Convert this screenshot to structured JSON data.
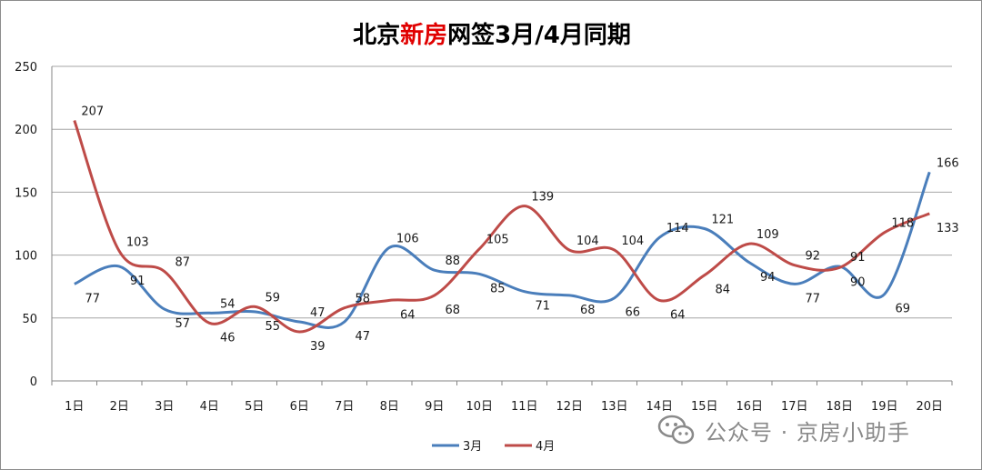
{
  "chart_data": {
    "type": "line",
    "title_parts": [
      {
        "text": "北京",
        "color": "#000000"
      },
      {
        "text": "新房",
        "color": "#e00000"
      },
      {
        "text": "网签3月/4月同期",
        "color": "#000000"
      }
    ],
    "categories": [
      "1日",
      "2日",
      "3日",
      "4日",
      "5日",
      "6日",
      "7日",
      "8日",
      "9日",
      "10日",
      "11日",
      "12日",
      "13日",
      "14日",
      "15日",
      "16日",
      "17日",
      "18日",
      "19日",
      "20日"
    ],
    "series": [
      {
        "name": "3月",
        "color": "#4a7ebb",
        "values": [
          77,
          91,
          57,
          54,
          55,
          47,
          47,
          106,
          88,
          85,
          71,
          68,
          66,
          114,
          121,
          94,
          77,
          91,
          69,
          166
        ]
      },
      {
        "name": "4月",
        "color": "#be4b48",
        "values": [
          207,
          103,
          87,
          46,
          59,
          39,
          58,
          64,
          68,
          105,
          139,
          104,
          104,
          64,
          84,
          109,
          92,
          90,
          118,
          133
        ]
      }
    ],
    "ylim": [
      0,
      250
    ],
    "yticks": [
      0,
      50,
      100,
      150,
      200,
      250
    ],
    "grid": true,
    "legend": "bottom-center"
  },
  "watermark": {
    "text": "公众号 · 京房小助手",
    "icon": "wechat-icon"
  }
}
